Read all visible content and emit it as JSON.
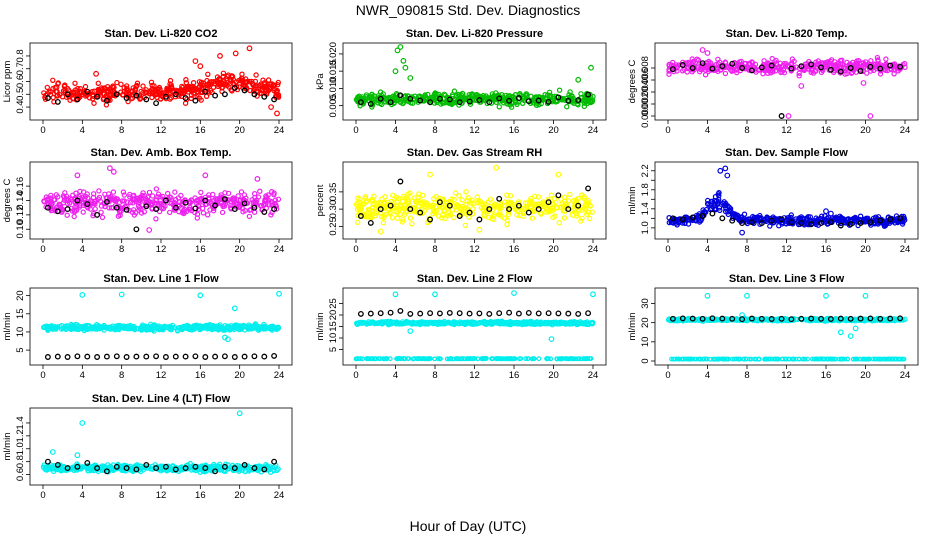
{
  "title": "NWR_090815  Std. Dev. Diagnostics",
  "xlabel": "Hour of Day (UTC)",
  "x_ticks": [
    "0",
    "4",
    "8",
    "12",
    "16",
    "20",
    "24"
  ],
  "chart_data": [
    {
      "type": "scatter",
      "title": "Stan. Dev. Li-820 CO2",
      "ylabel": "Licor ppm",
      "ylim": [
        0.33,
        0.87
      ],
      "yticks": [
        0.4,
        0.5,
        0.6,
        0.7,
        0.8
      ],
      "ytick_labels": [
        "0.4",
        "0.5",
        "0.6",
        "0.7",
        "0.8"
      ],
      "color": "#ff0000",
      "series": [
        {
          "name": "all",
          "base": 0.52,
          "spread": 0.07,
          "trend": [
            {
              "from": 15,
              "to": 24,
              "add": 0.08
            }
          ],
          "outliers": [
            [
              16,
              0.72
            ],
            [
              18,
              0.8
            ],
            [
              21,
              0.86
            ],
            [
              15.5,
              0.76
            ],
            [
              19.6,
              0.82
            ],
            [
              23.8,
              0.35
            ],
            [
              23.2,
              0.4
            ],
            [
              5.4,
              0.66
            ]
          ]
        },
        {
          "name": "hourly",
          "color": "#000000",
          "values": [
            0.47,
            0.44,
            0.5,
            0.46,
            0.52,
            0.48,
            0.45,
            0.5,
            0.47,
            0.49,
            0.46,
            0.43,
            0.48,
            0.5,
            0.47,
            0.45,
            0.52,
            0.49,
            0.5,
            0.55,
            0.53,
            0.5,
            0.48,
            0.46
          ]
        }
      ]
    },
    {
      "type": "scatter",
      "title": "Stan. Dev. Li-820 Pressure",
      "ylabel": "kPa",
      "ylim": [
        0.002,
        0.022
      ],
      "yticks": [
        0.005,
        0.01,
        0.015,
        0.02
      ],
      "ytick_labels": [
        "0.005",
        "0.010",
        "0.015",
        "0.020"
      ],
      "color": "#00bb00",
      "series": [
        {
          "name": "all",
          "base": 0.007,
          "spread": 0.0018,
          "outliers": [
            [
              4.2,
              0.021
            ],
            [
              4.5,
              0.022
            ],
            [
              4.8,
              0.018
            ],
            [
              5.0,
              0.016
            ],
            [
              4.0,
              0.015
            ],
            [
              5.5,
              0.013
            ],
            [
              23.8,
              0.016
            ],
            [
              22.5,
              0.0125
            ]
          ]
        },
        {
          "name": "hourly",
          "color": "#000000",
          "values": [
            0.006,
            0.0055,
            0.007,
            0.006,
            0.008,
            0.007,
            0.0065,
            0.006,
            0.007,
            0.0068,
            0.006,
            0.0062,
            0.0066,
            0.006,
            0.0071,
            0.0064,
            0.0072,
            0.0063,
            0.0065,
            0.0061,
            0.0074,
            0.0064,
            0.0066,
            0.0082
          ]
        }
      ]
    },
    {
      "type": "scatter",
      "title": "Stan. Dev. Li-820 Temp.",
      "ylabel": "degrees C",
      "ylim": [
        0,
        0.0115
      ],
      "yticks": [
        0,
        0.002,
        0.004,
        0.006,
        0.008
      ],
      "ytick_labels": [
        "0.000",
        "0.002",
        "0.004",
        "0.006",
        "0.008"
      ],
      "color": "#ee22ee",
      "series": [
        {
          "name": "all",
          "base": 0.0082,
          "spread": 0.0011,
          "outliers": [
            [
              3.5,
              0.011
            ],
            [
              4,
              0.0105
            ],
            [
              12.2,
              0.0
            ],
            [
              20.5,
              0.0
            ],
            [
              19.8,
              0.0055
            ],
            [
              13.5,
              0.005
            ]
          ]
        },
        {
          "name": "hourly",
          "color": "#000000",
          "values": [
            0.0078,
            0.0085,
            0.008,
            0.0088,
            0.0079,
            0.0083,
            0.0087,
            0.008,
            0.0076,
            0.0081,
            0.0084,
            0.0,
            0.0079,
            0.0083,
            0.0086,
            0.0081,
            0.0077,
            0.0074,
            0.008,
            0.0075,
            0.0082,
            0.0079,
            0.0084,
            0.0082
          ]
        }
      ]
    },
    {
      "type": "scatter",
      "title": "Stan. Dev. Amb. Box Temp.",
      "ylabel": "degrees C",
      "ylim": [
        0.092,
        0.188
      ],
      "yticks": [
        0.1,
        0.12,
        0.14,
        0.16
      ],
      "ytick_labels": [
        "0.10",
        "0.12",
        "0.14",
        "0.16"
      ],
      "color": "#ee22ee",
      "series": [
        {
          "name": "all",
          "base": 0.136,
          "spread": 0.015,
          "outliers": [
            [
              6.8,
              0.185
            ],
            [
              7.2,
              0.18
            ],
            [
              3.5,
              0.175
            ],
            [
              10.8,
              0.099
            ],
            [
              16.5,
              0.175
            ],
            [
              21.8,
              0.17
            ]
          ]
        },
        {
          "name": "hourly",
          "color": "#000000",
          "values": [
            0.13,
            0.125,
            0.128,
            0.14,
            0.135,
            0.12,
            0.138,
            0.13,
            0.127,
            0.1,
            0.132,
            0.128,
            0.14,
            0.13,
            0.137,
            0.129,
            0.14,
            0.133,
            0.142,
            0.128,
            0.136,
            0.13,
            0.124,
            0.128
          ]
        }
      ]
    },
    {
      "type": "scatter",
      "title": "Stan. Dev. Gas Stream RH",
      "ylabel": "percent",
      "ylim": [
        0.225,
        0.425
      ],
      "yticks": [
        0.25,
        0.3,
        0.35
      ],
      "ytick_labels": [
        "0.25",
        "0.30",
        "0.35"
      ],
      "color": "#ffff00",
      "series": [
        {
          "name": "all",
          "base": 0.305,
          "spread": 0.035,
          "outliers": [
            [
              14.2,
              0.42
            ],
            [
              7.5,
              0.4
            ],
            [
              20.5,
              0.4
            ],
            [
              2.5,
              0.235
            ],
            [
              12.5,
              0.24
            ]
          ]
        },
        {
          "name": "hourly",
          "color": "#000000",
          "values": [
            0.28,
            0.26,
            0.3,
            0.31,
            0.38,
            0.3,
            0.29,
            0.27,
            0.32,
            0.31,
            0.28,
            0.29,
            0.27,
            0.3,
            0.33,
            0.3,
            0.31,
            0.29,
            0.3,
            0.32,
            0.34,
            0.3,
            0.31,
            0.36
          ]
        }
      ]
    },
    {
      "type": "scatter",
      "title": "Stan. Dev. Sample Flow",
      "ylabel": "ml/min",
      "ylim": [
        0.85,
        2.3
      ],
      "yticks": [
        1.0,
        1.2,
        1.4,
        1.6,
        1.8,
        2.0,
        2.2
      ],
      "ytick_labels": [
        "1.0",
        "",
        "1.4",
        "",
        "1.8",
        "",
        "2.2"
      ],
      "color": "#0000dd",
      "series": [
        {
          "name": "all",
          "base": 1.15,
          "spread": 0.1,
          "bump": {
            "center": 5,
            "width": 1.5,
            "add": 0.4
          },
          "outliers": [
            [
              5.3,
              2.2
            ],
            [
              5.8,
              2.25
            ],
            [
              6,
              2.1
            ],
            [
              7.5,
              0.9
            ],
            [
              16,
              1.35
            ],
            [
              16.5,
              1.3
            ]
          ]
        },
        {
          "name": "hourly",
          "color": "#000000",
          "values": [
            1.2,
            1.18,
            1.22,
            1.25,
            1.3,
            1.2,
            1.15,
            1.1,
            1.12,
            1.1,
            1.15,
            1.18,
            1.12,
            1.1,
            1.08,
            1.1,
            1.12,
            1.05,
            1.08,
            1.1,
            1.12,
            1.15,
            1.18,
            1.2
          ]
        }
      ]
    },
    {
      "type": "scatter",
      "title": "Stan. Dev. Line 1 Flow",
      "ylabel": "ml/min",
      "ylim": [
        2.0,
        21.0
      ],
      "yticks": [
        5,
        10,
        15,
        20
      ],
      "ytick_labels": [
        "5",
        "10",
        "15",
        "20"
      ],
      "color": "#00eeee",
      "series": [
        {
          "name": "all",
          "base": 11.2,
          "spread": 0.7,
          "outliers": [
            [
              4,
              20.2
            ],
            [
              8,
              20.3
            ],
            [
              16,
              20.1
            ],
            [
              24,
              20.5
            ],
            [
              18.5,
              8.5
            ],
            [
              18.8,
              8.0
            ],
            [
              19.5,
              16.5
            ]
          ]
        },
        {
          "name": "hourly",
          "color": "#000000",
          "values": [
            3.1,
            3.2,
            3.1,
            3.3,
            3.2,
            3.1,
            3.2,
            3.3,
            3.1,
            3.2,
            3.2,
            3.3,
            3.1,
            3.2,
            3.2,
            3.3,
            3.1,
            3.2,
            3.3,
            3.1,
            3.2,
            3.3,
            3.2,
            3.4
          ]
        }
      ]
    },
    {
      "type": "scatter",
      "title": "Stan. Dev. Line 2 Flow",
      "ylabel": "ml/min",
      "ylim": [
        0,
        30
      ],
      "yticks": [
        5,
        10,
        15,
        20,
        25
      ],
      "ytick_labels": [
        "5",
        "10",
        "15",
        "20",
        "25"
      ],
      "color": "#00eeee",
      "series": [
        {
          "name": "all",
          "base": 16.5,
          "spread": 0.6,
          "low_band": 1.0,
          "outliers": [
            [
              4,
              29
            ],
            [
              8,
              29
            ],
            [
              16,
              29.5
            ],
            [
              24,
              29
            ],
            [
              5.5,
              13
            ],
            [
              19.8,
              9.5
            ]
          ]
        },
        {
          "name": "hourly",
          "color": "#000000",
          "values": [
            20.5,
            20.6,
            20.8,
            21.0,
            21.8,
            20.5,
            20.6,
            20.8,
            20.7,
            20.9,
            20.8,
            20.6,
            20.7,
            20.5,
            20.8,
            21.0,
            20.6,
            20.9,
            20.7,
            20.8,
            20.7,
            20.6,
            20.5,
            20.8
          ]
        }
      ]
    },
    {
      "type": "scatter",
      "title": "Stan. Dev. Line 3 Flow",
      "ylabel": "ml/min",
      "ylim": [
        0,
        36
      ],
      "yticks": [
        0,
        10,
        20,
        30
      ],
      "ytick_labels": [
        "0",
        "10",
        "20",
        "30"
      ],
      "color": "#00eeee",
      "series": [
        {
          "name": "all",
          "base": 21.5,
          "spread": 0.6,
          "low_band": 1.0,
          "outliers": [
            [
              4,
              34
            ],
            [
              8,
              34
            ],
            [
              16,
              34
            ],
            [
              20,
              34
            ],
            [
              7.5,
              24
            ],
            [
              17.5,
              15
            ],
            [
              18.5,
              13
            ],
            [
              19,
              17
            ]
          ]
        },
        {
          "name": "hourly",
          "color": "#000000",
          "values": [
            22.0,
            22.2,
            22.1,
            22.0,
            22.3,
            22.1,
            22.0,
            21.8,
            22.1,
            22.0,
            21.9,
            22.0,
            21.8,
            22.0,
            22.1,
            22.0,
            21.9,
            22.1,
            22.0,
            22.1,
            22.2,
            22.0,
            22.1,
            22.3
          ]
        }
      ]
    },
    {
      "type": "scatter",
      "title": "Stan. Dev. Line 4 (LT) Flow",
      "ylabel": "ml/min",
      "ylim": [
        0.5,
        1.57
      ],
      "yticks": [
        0.6,
        0.8,
        1.0,
        1.2,
        1.4
      ],
      "ytick_labels": [
        "0.6",
        "0.8",
        "1.0",
        "1.2",
        "1.4"
      ],
      "color": "#00eeee",
      "series": [
        {
          "name": "all",
          "base": 0.7,
          "spread": 0.05,
          "outliers": [
            [
              4,
              1.4
            ],
            [
              20,
              1.55
            ],
            [
              1,
              0.95
            ],
            [
              3.5,
              0.9
            ]
          ]
        },
        {
          "name": "hourly",
          "color": "#000000",
          "values": [
            0.8,
            0.75,
            0.7,
            0.72,
            0.78,
            0.7,
            0.65,
            0.72,
            0.7,
            0.68,
            0.75,
            0.7,
            0.72,
            0.68,
            0.7,
            0.72,
            0.7,
            0.65,
            0.72,
            0.7,
            0.75,
            0.7,
            0.68,
            0.8
          ]
        }
      ]
    }
  ]
}
